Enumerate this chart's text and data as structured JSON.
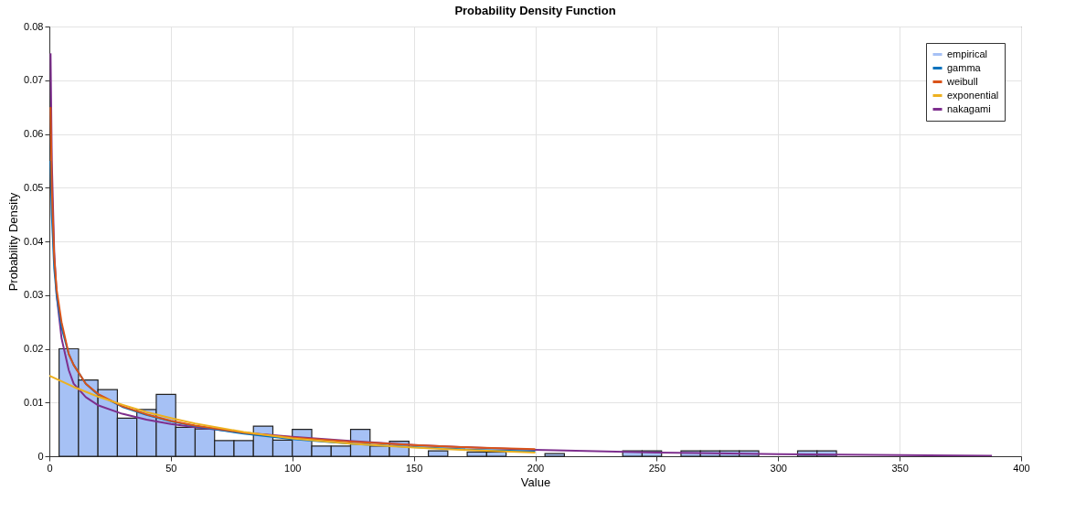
{
  "chart_data": {
    "type": "histogram",
    "title": "Probability Density Function",
    "xlabel": "Value",
    "ylabel": "Probability Density",
    "xlim": [
      0,
      400
    ],
    "xticks": [
      0,
      50,
      100,
      150,
      200,
      250,
      300,
      350,
      400
    ],
    "ylim": [
      0,
      0.08
    ],
    "yticks": [
      0,
      0.01,
      0.02,
      0.03,
      0.04,
      0.05,
      0.06,
      0.07,
      0.08
    ],
    "grid": true,
    "legend": "top right",
    "bins": [
      4,
      12,
      20,
      28,
      36,
      44,
      52,
      60,
      68,
      76,
      84,
      92,
      100,
      108,
      116,
      124,
      132,
      140,
      148,
      156,
      164,
      172,
      180,
      188,
      196,
      204,
      212,
      220,
      228,
      236,
      244,
      252,
      260,
      268,
      276,
      284,
      292,
      300,
      308,
      316,
      324
    ],
    "series": [
      {
        "name": "empirical",
        "color": "#a6c1f5",
        "values": [
          0.02,
          0.0142,
          0.0124,
          0.0071,
          0.0087,
          0.0115,
          0.0054,
          0.0051,
          0.0029,
          0.0029,
          0.0056,
          0.003,
          0.005,
          0.0019,
          0.0019,
          0.005,
          0.0019,
          0.0028,
          null,
          0.001,
          null,
          0.0008,
          0.0008,
          null,
          null,
          0.0005,
          null,
          null,
          null,
          0.001,
          0.001,
          null,
          0.001,
          0.001,
          0.001,
          0.001,
          null,
          null,
          0.001,
          0.001
        ]
      },
      {
        "name": "gamma",
        "type": "line",
        "color": "#0072bd",
        "x": [
          0.5,
          1,
          2,
          3,
          5,
          8,
          10,
          15,
          20,
          30,
          40,
          50,
          60,
          80,
          100,
          125,
          150,
          175,
          200
        ],
        "values": [
          0.055,
          0.045,
          0.035,
          0.03,
          0.024,
          0.019,
          0.017,
          0.0135,
          0.0115,
          0.0092,
          0.0077,
          0.0065,
          0.0056,
          0.0042,
          0.0032,
          0.0023,
          0.0017,
          0.0012,
          0.0009
        ]
      },
      {
        "name": "weibull",
        "type": "line",
        "color": "#d95319",
        "x": [
          0.5,
          1,
          2,
          3,
          5,
          8,
          10,
          15,
          20,
          30,
          40,
          50,
          60,
          80,
          100,
          125,
          150,
          175,
          200
        ],
        "values": [
          0.065,
          0.05,
          0.037,
          0.031,
          0.025,
          0.019,
          0.017,
          0.0135,
          0.0116,
          0.0093,
          0.0078,
          0.0066,
          0.0057,
          0.0044,
          0.0035,
          0.0027,
          0.0021,
          0.0016,
          0.0013
        ]
      },
      {
        "name": "exponential",
        "type": "line",
        "color": "#edb120",
        "x": [
          0,
          10,
          20,
          30,
          40,
          50,
          60,
          80,
          100,
          125,
          150,
          175,
          200
        ],
        "values": [
          0.015,
          0.0129,
          0.0111,
          0.0096,
          0.0082,
          0.0071,
          0.0061,
          0.0045,
          0.0033,
          0.0023,
          0.0016,
          0.0011,
          0.0007
        ]
      },
      {
        "name": "nakagami",
        "type": "line",
        "color": "#7e2f8e",
        "x": [
          0.5,
          1,
          2,
          3,
          5,
          8,
          10,
          15,
          20,
          30,
          40,
          50,
          60,
          80,
          100,
          125,
          150,
          175,
          200,
          250,
          300,
          350,
          388
        ],
        "values": [
          0.075,
          0.055,
          0.038,
          0.03,
          0.022,
          0.016,
          0.0135,
          0.011,
          0.0095,
          0.0079,
          0.0068,
          0.006,
          0.0054,
          0.0044,
          0.0036,
          0.0028,
          0.0021,
          0.0016,
          0.0012,
          0.0007,
          0.0004,
          0.0002,
          0.0001
        ]
      }
    ]
  }
}
